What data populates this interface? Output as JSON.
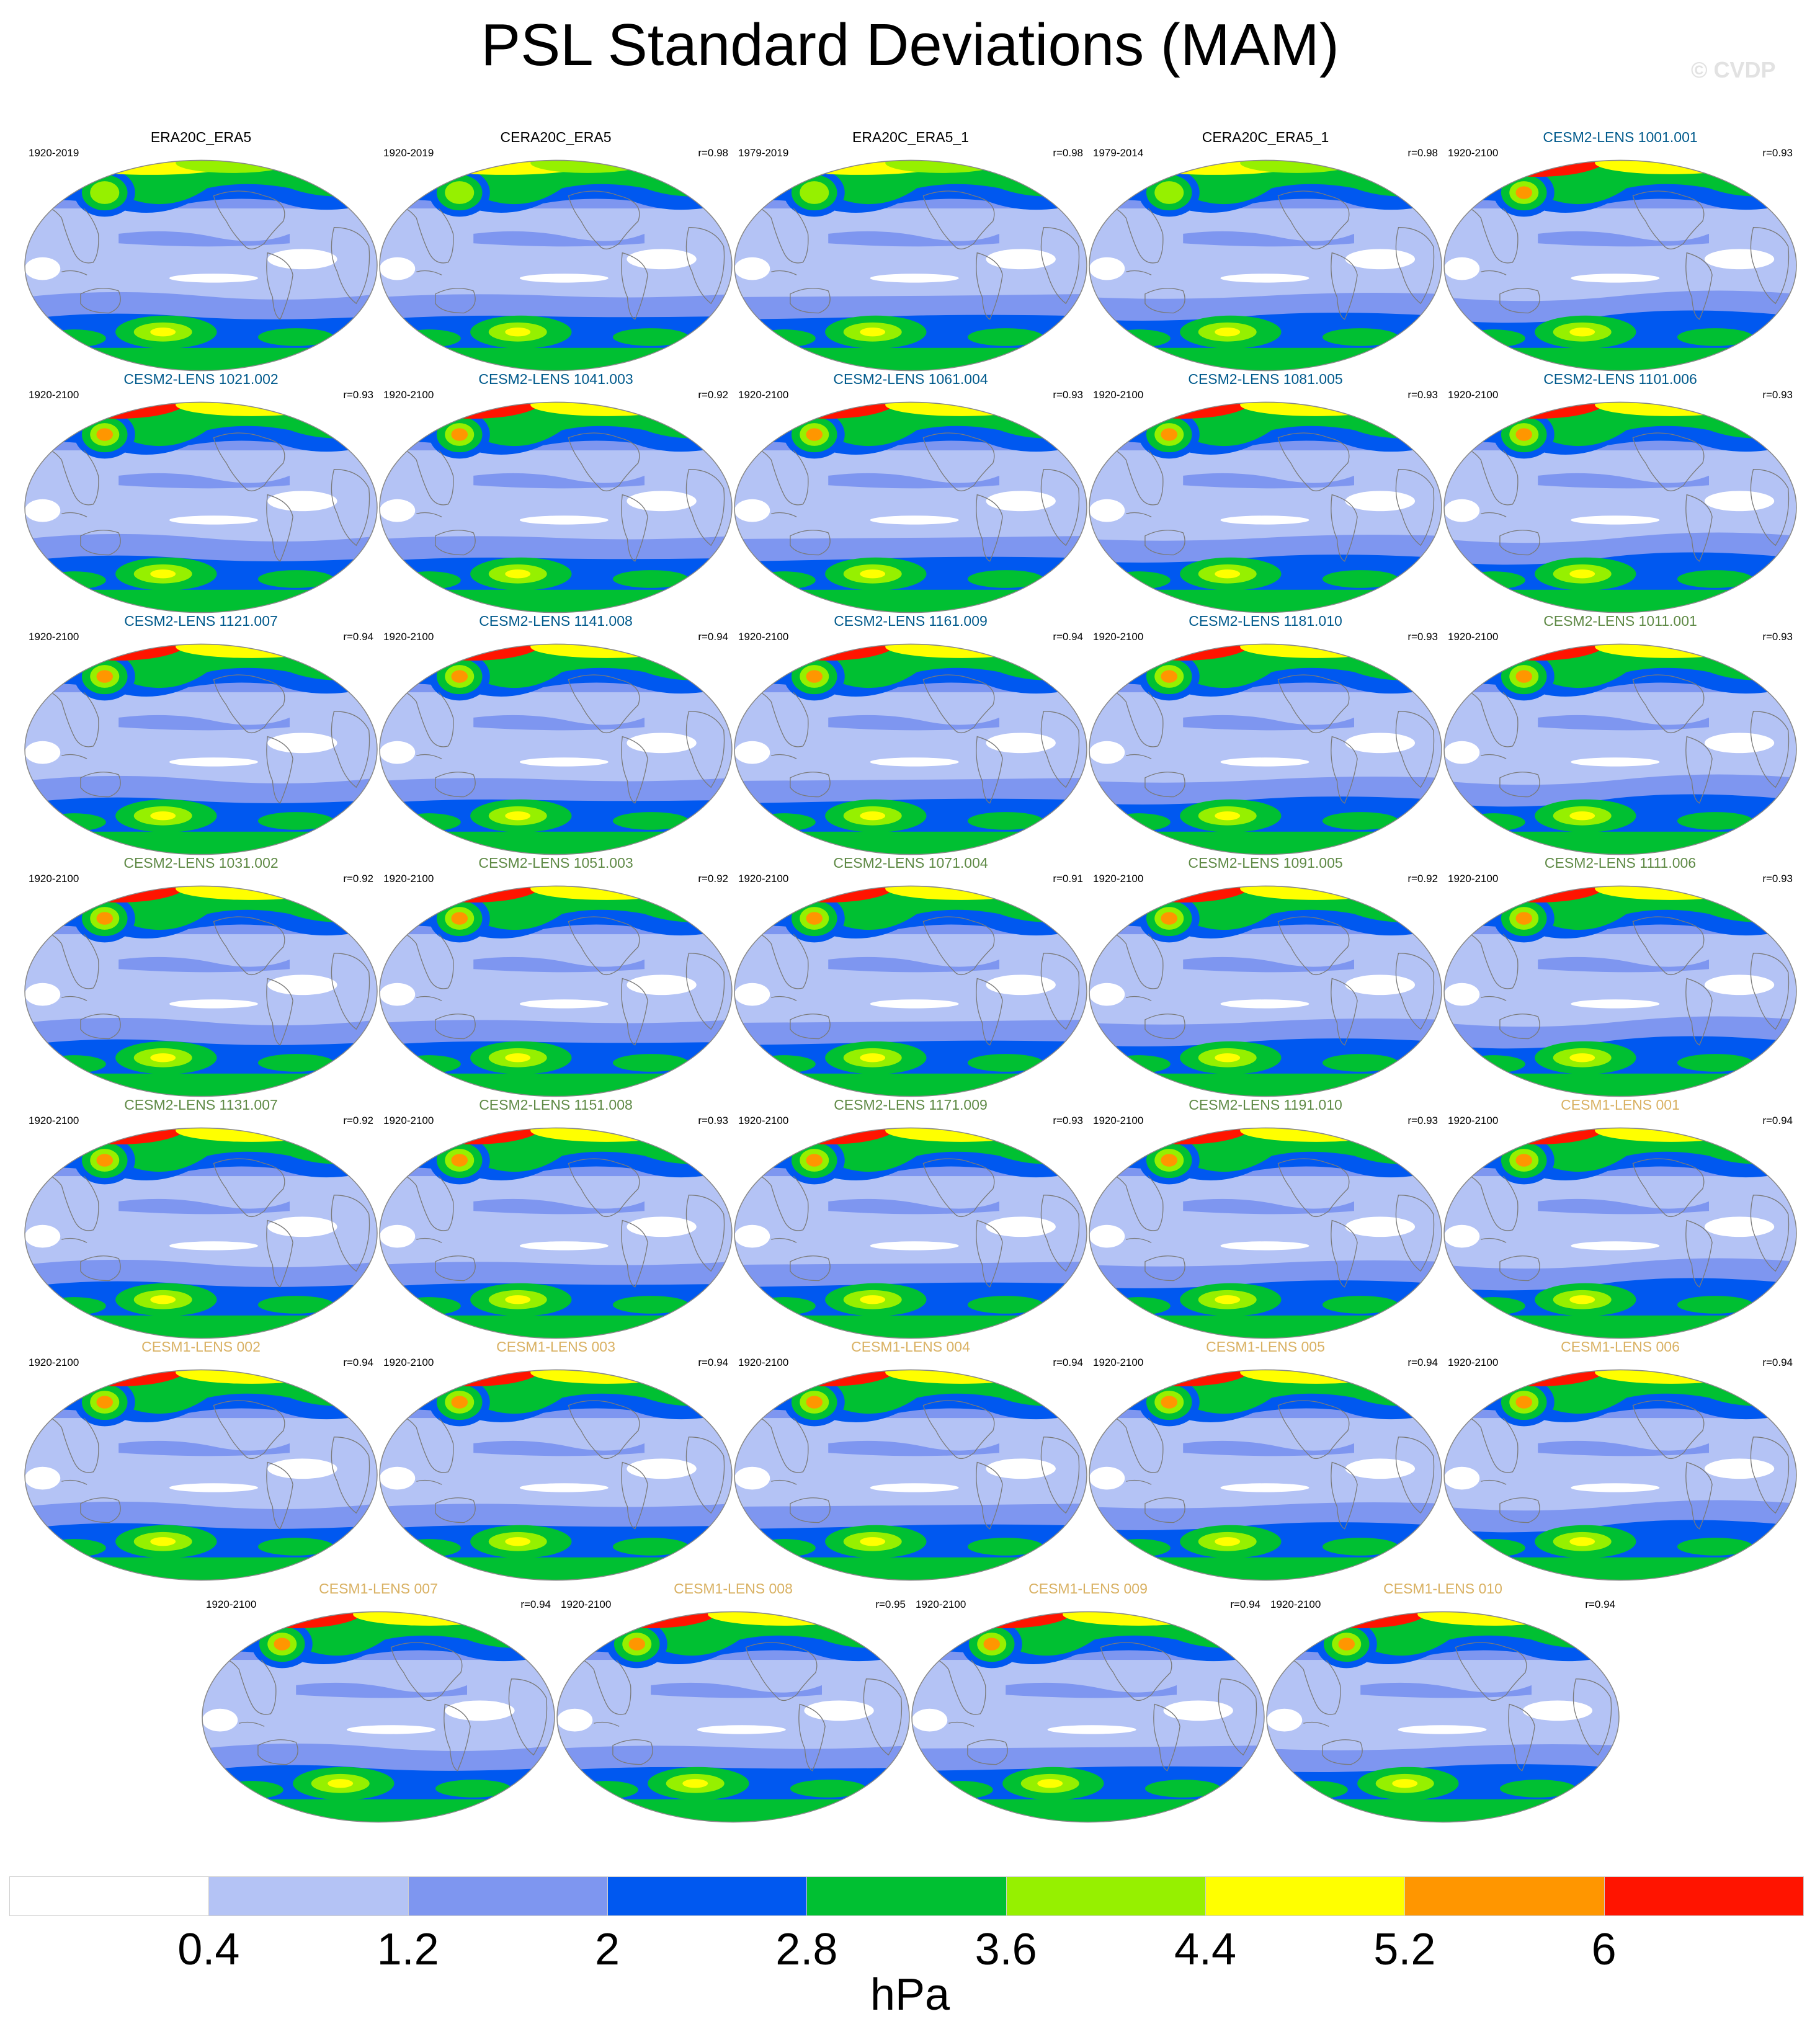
{
  "title": "PSL Standard Deviations (MAM)",
  "watermark": "© CVDP",
  "colors": {
    "obs_title": "#000000",
    "cesm2_cmip6_title": "#005a8c",
    "cesm2_smbb_title": "#5f8a46",
    "cesm1_title": "#d9b163"
  },
  "panels": [
    {
      "name": "ERA20C_ERA5",
      "years": "1920-2019",
      "corr": "",
      "group": "obs"
    },
    {
      "name": "CERA20C_ERA5",
      "years": "1920-2019",
      "corr": "r=0.98",
      "group": "obs"
    },
    {
      "name": "ERA20C_ERA5_1",
      "years": "1979-2019",
      "corr": "r=0.98",
      "group": "obs"
    },
    {
      "name": "CERA20C_ERA5_1",
      "years": "1979-2014",
      "corr": "r=0.98",
      "group": "obs"
    },
    {
      "name": "CESM2-LENS 1001.001",
      "years": "1920-2100",
      "corr": "r=0.93",
      "group": "cesm2a"
    },
    {
      "name": "CESM2-LENS 1021.002",
      "years": "1920-2100",
      "corr": "r=0.93",
      "group": "cesm2a"
    },
    {
      "name": "CESM2-LENS 1041.003",
      "years": "1920-2100",
      "corr": "r=0.92",
      "group": "cesm2a"
    },
    {
      "name": "CESM2-LENS 1061.004",
      "years": "1920-2100",
      "corr": "r=0.93",
      "group": "cesm2a"
    },
    {
      "name": "CESM2-LENS 1081.005",
      "years": "1920-2100",
      "corr": "r=0.93",
      "group": "cesm2a"
    },
    {
      "name": "CESM2-LENS 1101.006",
      "years": "1920-2100",
      "corr": "r=0.93",
      "group": "cesm2a"
    },
    {
      "name": "CESM2-LENS 1121.007",
      "years": "1920-2100",
      "corr": "r=0.94",
      "group": "cesm2a"
    },
    {
      "name": "CESM2-LENS 1141.008",
      "years": "1920-2100",
      "corr": "r=0.94",
      "group": "cesm2a"
    },
    {
      "name": "CESM2-LENS 1161.009",
      "years": "1920-2100",
      "corr": "r=0.94",
      "group": "cesm2a"
    },
    {
      "name": "CESM2-LENS 1181.010",
      "years": "1920-2100",
      "corr": "r=0.93",
      "group": "cesm2a"
    },
    {
      "name": "CESM2-LENS 1011.001",
      "years": "1920-2100",
      "corr": "r=0.93",
      "group": "cesm2b"
    },
    {
      "name": "CESM2-LENS 1031.002",
      "years": "1920-2100",
      "corr": "r=0.92",
      "group": "cesm2b"
    },
    {
      "name": "CESM2-LENS 1051.003",
      "years": "1920-2100",
      "corr": "r=0.92",
      "group": "cesm2b"
    },
    {
      "name": "CESM2-LENS 1071.004",
      "years": "1920-2100",
      "corr": "r=0.91",
      "group": "cesm2b"
    },
    {
      "name": "CESM2-LENS 1091.005",
      "years": "1920-2100",
      "corr": "r=0.92",
      "group": "cesm2b"
    },
    {
      "name": "CESM2-LENS 1111.006",
      "years": "1920-2100",
      "corr": "r=0.93",
      "group": "cesm2b"
    },
    {
      "name": "CESM2-LENS 1131.007",
      "years": "1920-2100",
      "corr": "r=0.92",
      "group": "cesm2b"
    },
    {
      "name": "CESM2-LENS 1151.008",
      "years": "1920-2100",
      "corr": "r=0.93",
      "group": "cesm2b"
    },
    {
      "name": "CESM2-LENS 1171.009",
      "years": "1920-2100",
      "corr": "r=0.93",
      "group": "cesm2b"
    },
    {
      "name": "CESM2-LENS 1191.010",
      "years": "1920-2100",
      "corr": "r=0.93",
      "group": "cesm2b"
    },
    {
      "name": "CESM1-LENS 001",
      "years": "1920-2100",
      "corr": "r=0.94",
      "group": "cesm1"
    },
    {
      "name": "CESM1-LENS 002",
      "years": "1920-2100",
      "corr": "r=0.94",
      "group": "cesm1"
    },
    {
      "name": "CESM1-LENS 003",
      "years": "1920-2100",
      "corr": "r=0.94",
      "group": "cesm1"
    },
    {
      "name": "CESM1-LENS 004",
      "years": "1920-2100",
      "corr": "r=0.94",
      "group": "cesm1"
    },
    {
      "name": "CESM1-LENS 005",
      "years": "1920-2100",
      "corr": "r=0.94",
      "group": "cesm1"
    },
    {
      "name": "CESM1-LENS 006",
      "years": "1920-2100",
      "corr": "r=0.94",
      "group": "cesm1"
    },
    {
      "name": "CESM1-LENS 007",
      "years": "1920-2100",
      "corr": "r=0.94",
      "group": "cesm1"
    },
    {
      "name": "CESM1-LENS 008",
      "years": "1920-2100",
      "corr": "r=0.95",
      "group": "cesm1"
    },
    {
      "name": "CESM1-LENS 009",
      "years": "1920-2100",
      "corr": "r=0.94",
      "group": "cesm1"
    },
    {
      "name": "CESM1-LENS 010",
      "years": "1920-2100",
      "corr": "r=0.94",
      "group": "cesm1"
    }
  ],
  "colorbar": {
    "levels": [
      "0.4",
      "1.2",
      "2",
      "2.8",
      "3.6",
      "4.4",
      "5.2",
      "6"
    ],
    "colors": [
      "#ffffff",
      "#b4c3f5",
      "#7e96f0",
      "#0058f0",
      "#00c032",
      "#96f000",
      "#ffff00",
      "#ff9600",
      "#ff1400"
    ],
    "unit": "hPa"
  }
}
